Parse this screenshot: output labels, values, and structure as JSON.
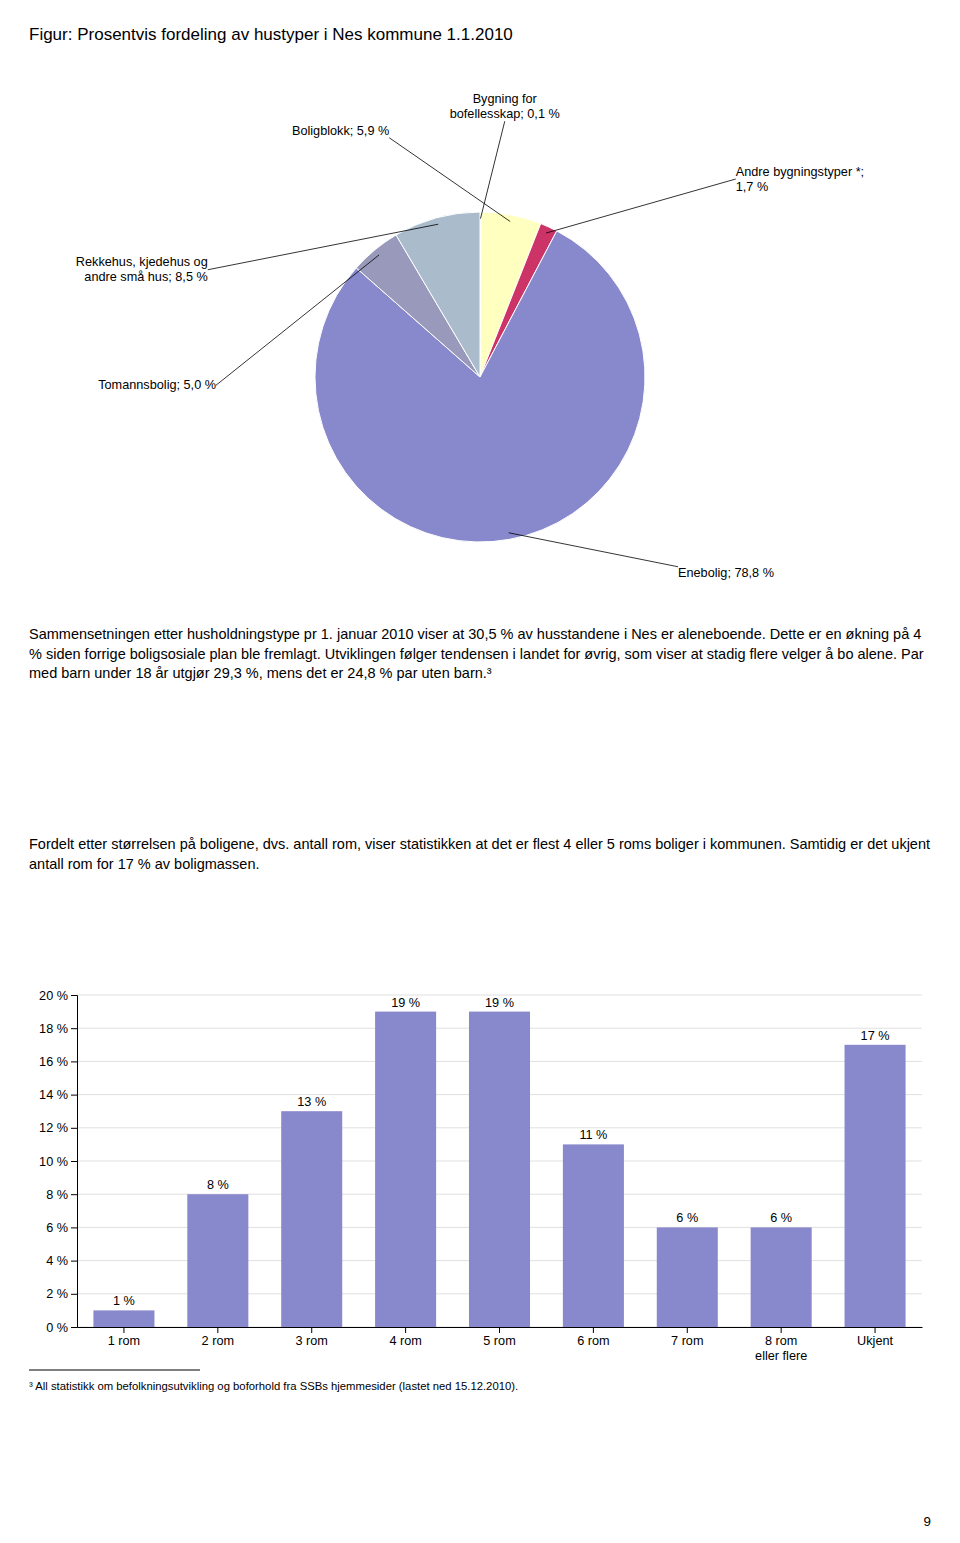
{
  "chart_data": [
    {
      "type": "pie",
      "title": "Figur: Prosentvis fordeling av hustyper i Nes kommune 1.1.2010",
      "categories": [
        "Bygning for\nbofellesskap; 0,1 %",
        "Boligblokk; 5,9 %",
        "Andre bygningstyper *;\n1,7 %",
        "Enebolig; 78,8 %",
        "Tomannsbolig; 5,0 %",
        "Rekkehus, kjedehus og\nandre små hus; 8,5 %"
      ],
      "values": [
        0.1,
        5.9,
        1.7,
        78.8,
        5.0,
        8.5
      ],
      "colors": [
        "#A8E8E8",
        "#FFFFC0",
        "#CC3366",
        "#8888CC",
        "#9999BB",
        "#AABBCC"
      ]
    },
    {
      "type": "bar",
      "categories": [
        "1 rom",
        "2 rom",
        "3 rom",
        "4 rom",
        "5 rom",
        "6 rom",
        "7 rom",
        "8 rom\neller flere",
        "Ukjent"
      ],
      "values": [
        1,
        8,
        13,
        19,
        19,
        11,
        6,
        6,
        17
      ],
      "value_labels": [
        "1 %",
        "8 %",
        "13 %",
        "19 %",
        "19 %",
        "11 %",
        "6 %",
        "6 %",
        "17 %"
      ],
      "data_labels": true,
      "color": "#8888CC",
      "ylim": [
        0,
        20
      ],
      "yticks": [
        {
          "value": 0,
          "label": "0 %"
        },
        {
          "value": 2,
          "label": "2 %"
        },
        {
          "value": 4,
          "label": "4 %"
        },
        {
          "value": 6,
          "label": "6 %"
        },
        {
          "value": 8,
          "label": "8 %"
        },
        {
          "value": 10,
          "label": "10 %"
        },
        {
          "value": 12,
          "label": "12 %"
        },
        {
          "value": 14,
          "label": "14 %"
        },
        {
          "value": 16,
          "label": "16 %"
        },
        {
          "value": 18,
          "label": "18 %"
        },
        {
          "value": 20,
          "label": "20 %"
        }
      ],
      "grid": true
    }
  ],
  "paragraphs": [
    "Sammensetningen etter husholdningstype pr 1. januar 2010 viser at 30,5 % av husstandene i Nes er aleneboende. Dette er en økning på 4 % siden forrige boligsosiale plan ble fremlagt. Utviklingen følger tendensen i landet for øvrig, som viser at stadig flere velger å bo alene. Par med barn under 18 år utgjør 29,3 %, mens det er 24,8 % par uten barn.³",
    "Fordelt etter størrelsen på boligene, dvs. antall rom, viser statistikken at det er flest 4 eller 5 roms boliger i kommunen. Samtidig er det ukjent antall rom for 17 % av boligmassen."
  ],
  "footnote": "³ All statistikk om befolkningsutvikling og boforhold fra SSBs hjemmesider (lastet ned 15.12.2010).",
  "page_number": "9"
}
